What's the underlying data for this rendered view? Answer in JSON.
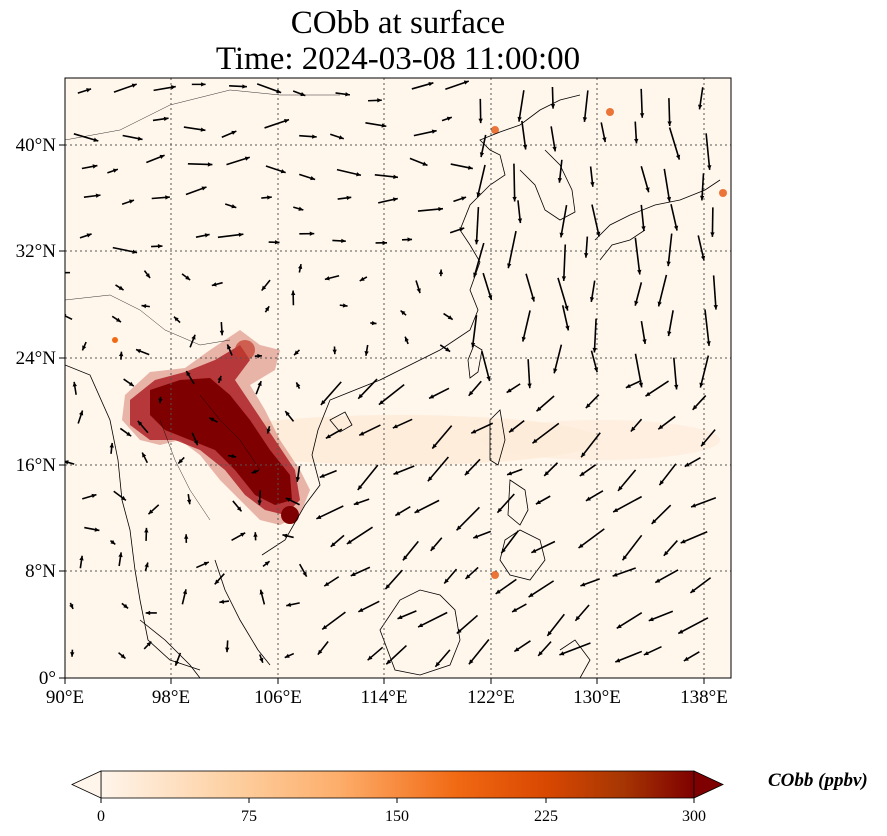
{
  "title": {
    "line1": "CObb at surface",
    "line2": "Time: 2024-03-08 11:00:00"
  },
  "map": {
    "lon_ticks": [
      "90°E",
      "98°E",
      "106°E",
      "114°E",
      "122°E",
      "130°E",
      "138°E"
    ],
    "lat_ticks": [
      "0°",
      "8°N",
      "16°N",
      "24°N",
      "32°N",
      "40°N"
    ],
    "lon_range": [
      90,
      140
    ],
    "lat_range": [
      0,
      45
    ],
    "gridlines": true,
    "field": "CObb (ppbv)",
    "hotspots_note": "High CObb concentrations over mainland Southeast Asia"
  },
  "colorbar": {
    "label": "CObb (ppbv)",
    "ticks": [
      "0",
      "75",
      "150",
      "225",
      "300"
    ],
    "range": [
      0,
      300
    ],
    "colormap": [
      "#fff5eb",
      "#fdd0a2",
      "#fdae6b",
      "#f16913",
      "#d94801",
      "#a63603",
      "#7f0000"
    ],
    "extend": "both"
  }
}
